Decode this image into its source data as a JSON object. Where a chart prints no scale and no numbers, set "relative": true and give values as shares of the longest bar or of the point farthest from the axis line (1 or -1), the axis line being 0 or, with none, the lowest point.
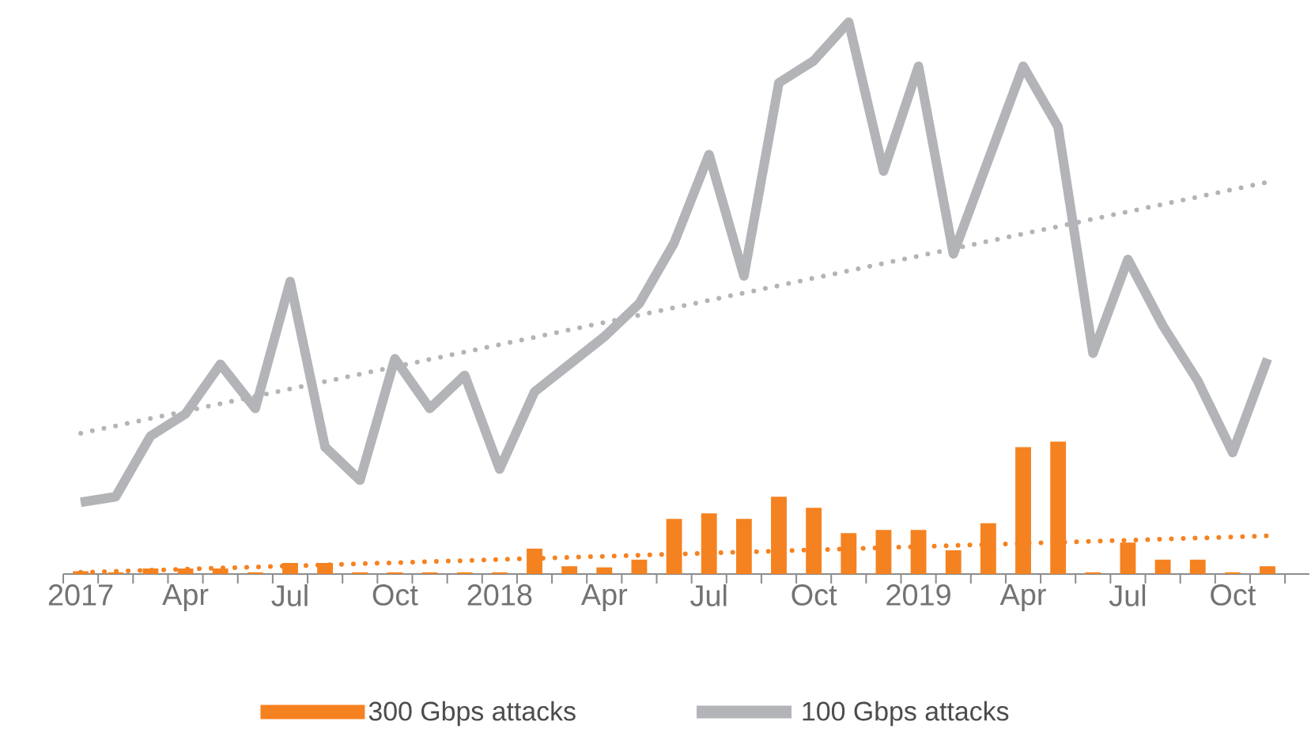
{
  "chart_data": {
    "type": "bar",
    "relative": true,
    "legend": "bottom",
    "marker": "none",
    "categories": [
      "2017",
      null,
      null,
      "Apr",
      null,
      null,
      "Jul",
      null,
      null,
      "Oct",
      null,
      null,
      "2018",
      null,
      null,
      "Apr",
      null,
      null,
      "Jul",
      null,
      null,
      "Oct",
      null,
      null,
      "2019",
      null,
      null,
      "Apr",
      null,
      null,
      "Jul",
      null,
      null,
      "Oct",
      null
    ],
    "series": [
      {
        "name": "300 Gbps attacks",
        "color": "#f58220",
        "values": [
          0.005,
          0.003,
          0.01,
          0.01,
          0.01,
          0.003,
          0.02,
          0.02,
          0.003,
          0.003,
          0.003,
          0.003,
          0.003,
          0.046,
          0.014,
          0.012,
          0.026,
          0.1,
          0.11,
          0.1,
          0.14,
          0.12,
          0.074,
          0.08,
          0.08,
          0.043,
          0.092,
          0.23,
          0.24,
          0.003,
          0.057,
          0.026,
          0.026,
          0.003,
          0.014
        ]
      },
      {
        "type": "line",
        "color": "#f58220",
        "line_style": "dotted",
        "values": [
          0.003,
          null,
          null,
          null,
          null,
          null,
          null,
          null,
          null,
          null,
          null,
          null,
          null,
          null,
          null,
          null,
          null,
          null,
          null,
          null,
          null,
          null,
          null,
          null,
          null,
          null,
          null,
          null,
          null,
          null,
          null,
          null,
          null,
          null,
          0.069
        ]
      },
      {
        "name": "100 Gbps attacks",
        "type": "line",
        "color": "#b3b4b7",
        "line_style": "solid",
        "values": [
          0.13,
          0.14,
          0.25,
          0.29,
          0.38,
          0.3,
          0.53,
          0.23,
          0.17,
          0.39,
          0.3,
          0.36,
          0.19,
          0.33,
          0.38,
          0.43,
          0.49,
          0.6,
          0.76,
          0.54,
          0.89,
          0.93,
          1.0,
          0.73,
          0.92,
          0.58,
          0.75,
          0.92,
          0.81,
          0.4,
          0.57,
          0.45,
          0.35,
          0.22,
          0.39
        ]
      },
      {
        "type": "line",
        "color": "#b3b4b7",
        "line_style": "dotted",
        "values": [
          0.255,
          null,
          null,
          null,
          null,
          null,
          null,
          null,
          null,
          null,
          null,
          null,
          null,
          null,
          null,
          null,
          null,
          null,
          null,
          null,
          null,
          null,
          null,
          null,
          null,
          null,
          null,
          null,
          null,
          null,
          null,
          null,
          null,
          null,
          0.71
        ]
      }
    ]
  }
}
